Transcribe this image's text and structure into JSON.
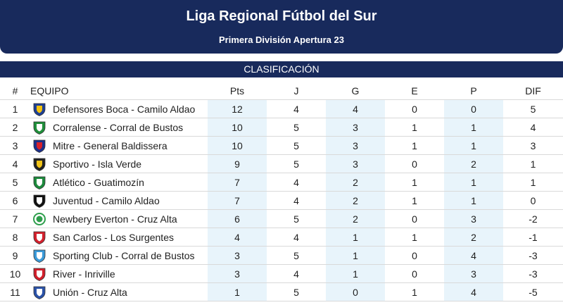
{
  "header": {
    "title": "Liga Regional Fútbol del Sur",
    "subtitle": "Primera División Apertura 23"
  },
  "section": {
    "label": "CLASIFICACIÓN"
  },
  "columns": [
    "#",
    "EQUIPO",
    "Pts",
    "J",
    "G",
    "E",
    "P",
    "DIF"
  ],
  "rows": [
    {
      "pos": "1",
      "team": "Defensores Boca - Camilo Aldao",
      "pts": "12",
      "j": "4",
      "g": "4",
      "e": "0",
      "p": "0",
      "dif": "5",
      "crest": "shield-blue-yellow",
      "c1": "#1d3f94",
      "c2": "#f4c20d"
    },
    {
      "pos": "2",
      "team": "Corralense - Corral de Bustos",
      "pts": "10",
      "j": "5",
      "g": "3",
      "e": "1",
      "p": "1",
      "dif": "4",
      "crest": "shield-green-white",
      "c1": "#1f8f3a",
      "c2": "#ffffff"
    },
    {
      "pos": "3",
      "team": "Mitre - General Baldissera",
      "pts": "10",
      "j": "5",
      "g": "3",
      "e": "1",
      "p": "1",
      "dif": "3",
      "crest": "shield-blue-red",
      "c1": "#1b2f8a",
      "c2": "#d6202a"
    },
    {
      "pos": "4",
      "team": "Sportivo - Isla Verde",
      "pts": "9",
      "j": "5",
      "g": "3",
      "e": "0",
      "p": "2",
      "dif": "1",
      "crest": "shield-black-yellow",
      "c1": "#222222",
      "c2": "#f2c418"
    },
    {
      "pos": "5",
      "team": "Atlético - Guatimozín",
      "pts": "7",
      "j": "4",
      "g": "2",
      "e": "1",
      "p": "1",
      "dif": "1",
      "crest": "shield-green",
      "c1": "#1c8a3c",
      "c2": "#ffffff"
    },
    {
      "pos": "6",
      "team": "Juventud - Camilo Aldao",
      "pts": "7",
      "j": "4",
      "g": "2",
      "e": "1",
      "p": "1",
      "dif": "0",
      "crest": "shield-black-white",
      "c1": "#111111",
      "c2": "#ffffff"
    },
    {
      "pos": "7",
      "team": "Newbery Everton - Cruz Alta",
      "pts": "6",
      "j": "5",
      "g": "2",
      "e": "0",
      "p": "3",
      "dif": "-2",
      "crest": "round-green",
      "c1": "#2e9e4c",
      "c2": "#ffffff"
    },
    {
      "pos": "8",
      "team": "San Carlos - Los Surgentes",
      "pts": "4",
      "j": "4",
      "g": "1",
      "e": "1",
      "p": "2",
      "dif": "-1",
      "crest": "shield-red-white",
      "c1": "#d4202c",
      "c2": "#ffffff"
    },
    {
      "pos": "9",
      "team": "Sporting Club - Corral de Bustos",
      "pts": "3",
      "j": "5",
      "g": "1",
      "e": "0",
      "p": "4",
      "dif": "-3",
      "crest": "shield-lightblue",
      "c1": "#3a9ad9",
      "c2": "#ffffff"
    },
    {
      "pos": "10",
      "team": "River - Inriville",
      "pts": "3",
      "j": "4",
      "g": "1",
      "e": "0",
      "p": "3",
      "dif": "-3",
      "crest": "shield-white-red",
      "c1": "#d21f2b",
      "c2": "#ffffff"
    },
    {
      "pos": "11",
      "team": "Unión - Cruz Alta",
      "pts": "1",
      "j": "5",
      "g": "0",
      "e": "1",
      "p": "4",
      "dif": "-5",
      "crest": "shield-blue-white",
      "c1": "#2a52a8",
      "c2": "#ffffff"
    }
  ],
  "colors": {
    "header_bg": "#182a5c",
    "shaded_column_bg": "#e8f4fb",
    "row_border": "#d9d9d9"
  }
}
